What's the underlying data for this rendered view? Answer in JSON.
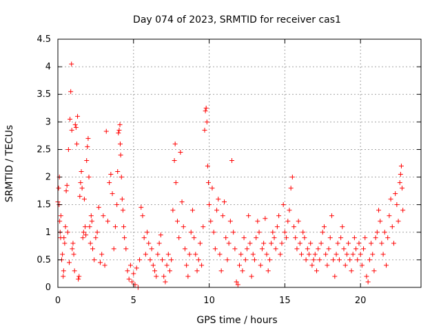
{
  "chart_data": {
    "type": "scatter",
    "title": "Day 074 of 2023, SRMTID for receiver cas1",
    "xlabel": "GPS time / hours",
    "ylabel": "SRMTID / TECUs",
    "xlim": [
      0,
      24
    ],
    "ylim": [
      0,
      4.5
    ],
    "xticks": [
      0,
      5,
      10,
      15,
      20
    ],
    "yticks": [
      0,
      0.5,
      1,
      1.5,
      2,
      2.5,
      3,
      3.5,
      4,
      4.5
    ],
    "xtick_labels": [
      "0",
      "5",
      "10",
      "15",
      "20"
    ],
    "ytick_labels": [
      "0",
      "0.5",
      "1",
      "1.5",
      "2",
      "2.5",
      "3",
      "3.5",
      "4",
      "4.5"
    ],
    "grid": true,
    "marker": "plus",
    "color": "#ff0000",
    "series": [
      {
        "name": "SRMTID",
        "points": [
          [
            0.0,
            1.55
          ],
          [
            0.05,
            1.8
          ],
          [
            0.08,
            1.5
          ],
          [
            0.1,
            2.0
          ],
          [
            0.12,
            1.2
          ],
          [
            0.15,
            1.0
          ],
          [
            0.18,
            0.9
          ],
          [
            0.2,
            1.3
          ],
          [
            0.25,
            0.5
          ],
          [
            0.3,
            0.6
          ],
          [
            0.35,
            0.2
          ],
          [
            0.38,
            0.3
          ],
          [
            0.4,
            0.9
          ],
          [
            0.45,
            0.8
          ],
          [
            0.5,
            1.1
          ],
          [
            0.55,
            1.75
          ],
          [
            0.6,
            1.85
          ],
          [
            0.65,
            1.0
          ],
          [
            0.7,
            2.5
          ],
          [
            0.75,
            0.45
          ],
          [
            0.8,
            3.05
          ],
          [
            0.85,
            3.55
          ],
          [
            0.9,
            4.05
          ],
          [
            0.92,
            2.85
          ],
          [
            0.95,
            0.7
          ],
          [
            1.0,
            0.8
          ],
          [
            1.05,
            0.6
          ],
          [
            1.1,
            0.3
          ],
          [
            1.15,
            2.95
          ],
          [
            1.2,
            2.9
          ],
          [
            1.25,
            2.6
          ],
          [
            1.3,
            3.1
          ],
          [
            1.35,
            0.15
          ],
          [
            1.4,
            0.2
          ],
          [
            1.45,
            1.65
          ],
          [
            1.5,
            1.9
          ],
          [
            1.55,
            2.1
          ],
          [
            1.6,
            1.8
          ],
          [
            1.65,
            0.9
          ],
          [
            1.7,
            1.0
          ],
          [
            1.75,
            1.6
          ],
          [
            1.8,
            1.1
          ],
          [
            1.85,
            0.95
          ],
          [
            1.9,
            2.3
          ],
          [
            1.95,
            2.55
          ],
          [
            2.0,
            2.7
          ],
          [
            2.05,
            2.0
          ],
          [
            2.1,
            1.1
          ],
          [
            2.15,
            0.8
          ],
          [
            2.2,
            1.3
          ],
          [
            2.25,
            1.2
          ],
          [
            2.3,
            0.7
          ],
          [
            2.4,
            0.5
          ],
          [
            2.5,
            0.9
          ],
          [
            2.6,
            1.0
          ],
          [
            2.7,
            1.45
          ],
          [
            2.8,
            0.45
          ],
          [
            2.9,
            0.6
          ],
          [
            3.0,
            1.3
          ],
          [
            3.1,
            0.4
          ],
          [
            3.2,
            2.83
          ],
          [
            3.3,
            1.2
          ],
          [
            3.4,
            1.9
          ],
          [
            3.5,
            2.05
          ],
          [
            3.6,
            1.7
          ],
          [
            3.7,
            0.7
          ],
          [
            3.8,
            1.1
          ],
          [
            3.9,
            1.5
          ],
          [
            3.95,
            2.1
          ],
          [
            4.0,
            2.8
          ],
          [
            4.05,
            2.85
          ],
          [
            4.1,
            2.95
          ],
          [
            4.12,
            2.6
          ],
          [
            4.15,
            2.4
          ],
          [
            4.2,
            2.0
          ],
          [
            4.25,
            1.6
          ],
          [
            4.3,
            1.4
          ],
          [
            4.35,
            1.1
          ],
          [
            4.4,
            0.9
          ],
          [
            4.5,
            0.7
          ],
          [
            4.6,
            0.3
          ],
          [
            4.7,
            0.15
          ],
          [
            4.8,
            0.4
          ],
          [
            4.9,
            0.1
          ],
          [
            5.0,
            0.25
          ],
          [
            5.1,
            0.05
          ],
          [
            5.2,
            0.35
          ],
          [
            5.3,
            0.0
          ],
          [
            5.4,
            0.5
          ],
          [
            5.5,
            1.45
          ],
          [
            5.6,
            1.3
          ],
          [
            5.7,
            0.9
          ],
          [
            5.8,
            0.6
          ],
          [
            5.9,
            1.0
          ],
          [
            6.0,
            0.8
          ],
          [
            6.1,
            0.5
          ],
          [
            6.2,
            0.7
          ],
          [
            6.3,
            0.4
          ],
          [
            6.4,
            0.3
          ],
          [
            6.5,
            0.2
          ],
          [
            6.6,
            0.6
          ],
          [
            6.7,
            0.8
          ],
          [
            6.8,
            0.95
          ],
          [
            6.9,
            0.5
          ],
          [
            7.0,
            0.2
          ],
          [
            7.1,
            0.1
          ],
          [
            7.2,
            0.4
          ],
          [
            7.3,
            0.6
          ],
          [
            7.4,
            0.3
          ],
          [
            7.5,
            0.5
          ],
          [
            7.6,
            1.4
          ],
          [
            7.7,
            2.3
          ],
          [
            7.75,
            2.6
          ],
          [
            7.8,
            1.9
          ],
          [
            7.9,
            1.2
          ],
          [
            8.0,
            0.9
          ],
          [
            8.1,
            2.45
          ],
          [
            8.2,
            1.55
          ],
          [
            8.3,
            1.1
          ],
          [
            8.4,
            0.7
          ],
          [
            8.5,
            0.4
          ],
          [
            8.6,
            0.2
          ],
          [
            8.7,
            0.6
          ],
          [
            8.8,
            1.0
          ],
          [
            8.9,
            1.4
          ],
          [
            9.0,
            0.9
          ],
          [
            9.1,
            0.6
          ],
          [
            9.2,
            0.3
          ],
          [
            9.3,
            0.5
          ],
          [
            9.4,
            0.8
          ],
          [
            9.5,
            0.4
          ],
          [
            9.6,
            1.1
          ],
          [
            9.7,
            2.85
          ],
          [
            9.75,
            3.2
          ],
          [
            9.8,
            3.25
          ],
          [
            9.85,
            3.0
          ],
          [
            9.9,
            2.2
          ],
          [
            9.95,
            1.9
          ],
          [
            10.0,
            1.5
          ],
          [
            10.1,
            1.2
          ],
          [
            10.2,
            1.8
          ],
          [
            10.3,
            1.0
          ],
          [
            10.4,
            0.7
          ],
          [
            10.5,
            1.4
          ],
          [
            10.6,
            1.6
          ],
          [
            10.7,
            0.6
          ],
          [
            10.8,
            0.3
          ],
          [
            10.9,
            1.3
          ],
          [
            11.0,
            1.55
          ],
          [
            11.1,
            0.9
          ],
          [
            11.2,
            0.5
          ],
          [
            11.3,
            0.8
          ],
          [
            11.4,
            1.2
          ],
          [
            11.5,
            2.3
          ],
          [
            11.6,
            1.0
          ],
          [
            11.7,
            0.7
          ],
          [
            11.8,
            0.1
          ],
          [
            11.9,
            0.05
          ],
          [
            12.0,
            0.4
          ],
          [
            12.1,
            0.6
          ],
          [
            12.2,
            0.3
          ],
          [
            12.3,
            0.9
          ],
          [
            12.4,
            0.5
          ],
          [
            12.5,
            0.7
          ],
          [
            12.6,
            1.3
          ],
          [
            12.7,
            0.8
          ],
          [
            12.8,
            0.2
          ],
          [
            12.9,
            0.6
          ],
          [
            13.0,
            0.5
          ],
          [
            13.1,
            0.9
          ],
          [
            13.2,
            1.2
          ],
          [
            13.3,
            1.0
          ],
          [
            13.4,
            0.4
          ],
          [
            13.5,
            0.7
          ],
          [
            13.6,
            0.8
          ],
          [
            13.7,
            1.25
          ],
          [
            13.8,
            0.6
          ],
          [
            13.9,
            0.3
          ],
          [
            14.0,
            0.5
          ],
          [
            14.1,
            0.8
          ],
          [
            14.2,
            1.0
          ],
          [
            14.3,
            0.9
          ],
          [
            14.4,
            0.7
          ],
          [
            14.5,
            1.1
          ],
          [
            14.6,
            1.3
          ],
          [
            14.7,
            0.6
          ],
          [
            14.8,
            0.8
          ],
          [
            14.9,
            1.5
          ],
          [
            15.0,
            1.0
          ],
          [
            15.1,
            0.9
          ],
          [
            15.2,
            1.2
          ],
          [
            15.3,
            1.4
          ],
          [
            15.4,
            1.8
          ],
          [
            15.5,
            2.0
          ],
          [
            15.6,
            1.1
          ],
          [
            15.7,
            0.9
          ],
          [
            15.8,
            0.7
          ],
          [
            15.9,
            1.2
          ],
          [
            16.0,
            0.8
          ],
          [
            16.1,
            0.6
          ],
          [
            16.2,
            1.0
          ],
          [
            16.3,
            0.9
          ],
          [
            16.4,
            0.5
          ],
          [
            16.5,
            0.7
          ],
          [
            16.6,
            0.6
          ],
          [
            16.7,
            0.8
          ],
          [
            16.8,
            0.4
          ],
          [
            16.9,
            0.5
          ],
          [
            17.0,
            0.6
          ],
          [
            17.1,
            0.3
          ],
          [
            17.2,
            0.7
          ],
          [
            17.3,
            0.5
          ],
          [
            17.4,
            0.8
          ],
          [
            17.5,
            1.0
          ],
          [
            17.6,
            1.1
          ],
          [
            17.7,
            0.6
          ],
          [
            17.8,
            0.4
          ],
          [
            17.9,
            0.7
          ],
          [
            18.0,
            0.9
          ],
          [
            18.1,
            1.3
          ],
          [
            18.2,
            0.5
          ],
          [
            18.3,
            0.2
          ],
          [
            18.4,
            0.6
          ],
          [
            18.5,
            0.8
          ],
          [
            18.6,
            0.5
          ],
          [
            18.7,
            0.9
          ],
          [
            18.8,
            1.1
          ],
          [
            18.9,
            0.7
          ],
          [
            19.0,
            0.4
          ],
          [
            19.1,
            0.6
          ],
          [
            19.2,
            0.8
          ],
          [
            19.3,
            0.5
          ],
          [
            19.4,
            0.3
          ],
          [
            19.5,
            0.6
          ],
          [
            19.6,
            0.9
          ],
          [
            19.7,
            0.7
          ],
          [
            19.8,
            0.5
          ],
          [
            19.9,
            0.8
          ],
          [
            20.0,
            0.6
          ],
          [
            20.1,
            0.4
          ],
          [
            20.2,
            0.7
          ],
          [
            20.3,
            0.9
          ],
          [
            20.4,
            0.2
          ],
          [
            20.5,
            0.1
          ],
          [
            20.6,
            0.5
          ],
          [
            20.7,
            0.8
          ],
          [
            20.8,
            0.6
          ],
          [
            20.9,
            0.3
          ],
          [
            21.0,
            0.9
          ],
          [
            21.1,
            1.0
          ],
          [
            21.2,
            1.4
          ],
          [
            21.3,
            1.2
          ],
          [
            21.4,
            0.8
          ],
          [
            21.5,
            0.6
          ],
          [
            21.6,
            1.0
          ],
          [
            21.7,
            0.4
          ],
          [
            21.8,
            0.9
          ],
          [
            21.9,
            1.3
          ],
          [
            22.0,
            1.6
          ],
          [
            22.1,
            1.1
          ],
          [
            22.2,
            0.8
          ],
          [
            22.3,
            1.7
          ],
          [
            22.4,
            1.5
          ],
          [
            22.5,
            1.2
          ],
          [
            22.6,
            1.9
          ],
          [
            22.65,
            2.05
          ],
          [
            22.7,
            2.2
          ],
          [
            22.75,
            1.8
          ],
          [
            22.8,
            1.4
          ]
        ]
      }
    ]
  }
}
